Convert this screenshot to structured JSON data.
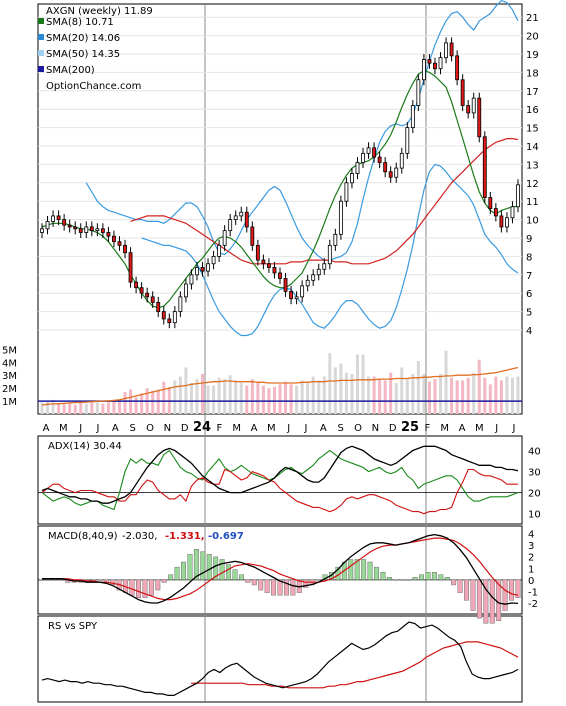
{
  "chart_data": {
    "type": "candlestick",
    "ticker": "AXGN",
    "price_panel": {
      "title": "AXGN (weekly) 11.89",
      "watermark": "OptionChance.com",
      "legend": [
        {
          "label": "SMA(8) 10.71",
          "color": "#1a7a1a"
        },
        {
          "label": "SMA(20) 14.06",
          "color": "#2a8ad4"
        },
        {
          "label": "SMA(50) 14.35",
          "color": "#9fd0f0"
        },
        {
          "label": "SMA(200)",
          "color": "#1a1aa0"
        }
      ],
      "y_ticks": [
        "4",
        "5",
        "6",
        "7",
        "8",
        "9",
        "10",
        "11",
        "12",
        "13",
        "14",
        "15",
        "16",
        "17",
        "18",
        "19",
        "20",
        "21"
      ],
      "ylim": [
        4,
        21.5
      ],
      "close_series": [
        9.5,
        9.9,
        10.2,
        10.0,
        9.7,
        9.6,
        9.5,
        9.3,
        9.6,
        9.4,
        9.5,
        9.3,
        9.1,
        8.8,
        8.6,
        8.2,
        6.6,
        6.3,
        6.0,
        5.8,
        5.5,
        5.0,
        4.6,
        4.4,
        5.0,
        5.8,
        6.5,
        7.0,
        7.4,
        7.2,
        7.6,
        8.0,
        8.6,
        9.4,
        10.0,
        10.2,
        10.4,
        9.6,
        8.6,
        7.8,
        7.6,
        7.4,
        7.1,
        6.8,
        6.1,
        5.7,
        5.8,
        6.4,
        6.7,
        7.0,
        7.3,
        7.6,
        8.6,
        9.2,
        11.0,
        12.0,
        12.5,
        13.1,
        13.6,
        13.9,
        13.4,
        13.1,
        12.6,
        12.3,
        12.8,
        13.6,
        15.0,
        16.2,
        17.6,
        18.7,
        18.5,
        18.2,
        18.8,
        19.6,
        18.9,
        17.6,
        16.2,
        15.8,
        16.6,
        14.5,
        11.2,
        10.6,
        10.2,
        9.6,
        10.1,
        10.7,
        11.89
      ],
      "sma8": [
        9.6,
        9.7,
        9.8,
        9.8,
        9.8,
        9.7,
        9.6,
        9.5,
        9.5,
        9.4,
        9.3,
        9.1,
        8.8,
        8.4,
        8.0,
        7.6,
        7.0,
        6.5,
        6.0,
        5.6,
        5.3,
        5.2,
        5.3,
        5.6,
        6.0,
        6.4,
        6.8,
        7.2,
        7.6,
        7.9,
        8.3,
        8.7,
        9.0,
        9.1,
        9.0,
        8.8,
        8.5,
        8.1,
        7.7,
        7.3,
        6.9,
        6.6,
        6.4,
        6.3,
        6.3,
        6.5,
        6.8,
        7.1,
        7.7,
        8.3,
        9.0,
        9.8,
        10.6,
        11.3,
        11.9,
        12.4,
        12.8,
        13.0,
        13.1,
        13.2,
        13.4,
        13.7,
        14.1,
        14.6,
        15.3,
        16.1,
        16.8,
        17.4,
        17.9,
        18.1,
        18.0,
        17.8,
        17.5,
        17.2,
        16.4,
        15.4,
        14.4,
        13.4,
        12.4,
        11.5,
        10.9,
        10.5,
        10.3,
        10.5,
        10.6,
        10.7,
        10.71
      ],
      "sma50": [
        9.9,
        10.0,
        10.1,
        10.2,
        10.2,
        10.2,
        10.2,
        10.1,
        10.0,
        9.9,
        9.8,
        9.6,
        9.4,
        9.2,
        9.0,
        8.8,
        8.6,
        8.4,
        8.2,
        8.0,
        7.8,
        7.7,
        7.6,
        7.6,
        7.6,
        7.6,
        7.6,
        7.6,
        7.6,
        7.7,
        7.7,
        7.7,
        7.8,
        7.8,
        7.8,
        7.8,
        7.8,
        7.7,
        7.7,
        7.7,
        7.6,
        7.6,
        7.6,
        7.6,
        7.7,
        7.8,
        7.9,
        8.1,
        8.3,
        8.6,
        8.9,
        9.2,
        9.6,
        10.0,
        10.4,
        10.8,
        11.2,
        11.6,
        12.0,
        12.3,
        12.6,
        12.9,
        13.2,
        13.5,
        13.8,
        14.0,
        14.2,
        14.3,
        14.4,
        14.4,
        14.35
      ],
      "bb_upper": [
        12.0,
        11.5,
        11.0,
        10.7,
        10.5,
        10.4,
        10.3,
        10.2,
        10.1,
        10.0,
        10.0,
        9.9,
        9.9,
        9.9,
        9.8,
        10.0,
        10.3,
        10.6,
        10.9,
        10.9,
        10.7,
        10.2,
        9.6,
        8.8,
        8.2,
        8.1,
        8.4,
        8.8,
        9.4,
        10.0,
        10.4,
        10.8,
        11.2,
        11.6,
        11.8,
        11.6,
        11.0,
        10.3,
        9.6,
        9.0,
        8.6,
        8.3,
        8.0,
        7.8,
        7.8,
        7.9,
        8.0,
        8.2,
        8.8,
        9.8,
        11.1,
        12.3,
        13.3,
        14.2,
        14.8,
        15.1,
        15.2,
        15.1,
        15.2,
        15.7,
        16.6,
        17.6,
        18.6,
        19.5,
        20.2,
        20.8,
        21.2,
        21.3,
        21.0,
        20.6,
        20.3,
        20.8,
        21.0,
        21.2,
        21.6,
        21.9,
        21.8,
        21.4,
        20.8
      ],
      "bb_lower": [
        9.0,
        8.9,
        8.8,
        8.7,
        8.6,
        8.6,
        8.5,
        8.4,
        8.3,
        8.0,
        7.6,
        7.0,
        6.3,
        5.6,
        5.0,
        4.6,
        4.2,
        3.9,
        3.7,
        3.7,
        3.8,
        4.2,
        4.8,
        5.4,
        5.9,
        6.2,
        6.3,
        6.2,
        5.8,
        5.4,
        4.9,
        4.4,
        4.2,
        4.1,
        4.4,
        4.8,
        5.3,
        5.6,
        5.6,
        5.4,
        5.0,
        4.6,
        4.3,
        4.1,
        4.2,
        4.5,
        5.2,
        6.2,
        7.3,
        8.6,
        10.2,
        11.6,
        12.6,
        13.0,
        12.9,
        12.6,
        12.2,
        11.9,
        11.6,
        11.3,
        10.8,
        10.0,
        9.2,
        8.8,
        8.5,
        8.1,
        7.6,
        7.3,
        7.1
      ]
    },
    "volume_panel": {
      "y_ticks": [
        "1M",
        "2M",
        "3M",
        "4M",
        "5M"
      ],
      "ylim": [
        0,
        6.5
      ],
      "volume_m": [
        0.9,
        1.0,
        1.1,
        0.8,
        0.8,
        0.9,
        0.7,
        0.9,
        0.8,
        1.0,
        0.9,
        0.8,
        0.9,
        1.1,
        1.0,
        1.7,
        1.9,
        1.3,
        1.6,
        2.0,
        1.8,
        1.9,
        2.5,
        2.1,
        2.6,
        2.9,
        3.6,
        2.4,
        2.7,
        3.1,
        2.2,
        2.2,
        2.8,
        2.7,
        3.0,
        2.6,
        2.4,
        2.2,
        2.7,
        2.5,
        2.2,
        2.0,
        2.1,
        2.3,
        2.5,
        2.3,
        2.2,
        2.6,
        2.5,
        2.9,
        2.6,
        2.9,
        4.7,
        3.6,
        3.9,
        3.2,
        3.1,
        4.6,
        4.6,
        2.9,
        2.9,
        2.7,
        2.6,
        3.2,
        2.4,
        3.6,
        2.7,
        3.1,
        4.1,
        3.1,
        2.5,
        2.7,
        3.1,
        4.9,
        2.8,
        2.6,
        2.6,
        2.8,
        3.2,
        4.2,
        2.8,
        2.3,
        2.9,
        2.6,
        2.9,
        2.8,
        2.9
      ],
      "avg_series": [
        0.7,
        0.75,
        0.78,
        0.8,
        0.82,
        0.85,
        0.88,
        0.9,
        0.92,
        0.95,
        0.98,
        1.0,
        1.02,
        1.05,
        1.1,
        1.2,
        1.3,
        1.4,
        1.5,
        1.6,
        1.7,
        1.8,
        1.9,
        2.0,
        2.1,
        2.15,
        2.2,
        2.3,
        2.35,
        2.4,
        2.45,
        2.5,
        2.5,
        2.55,
        2.55,
        2.5,
        2.5,
        2.5,
        2.5,
        2.45,
        2.45,
        2.4,
        2.4,
        2.4,
        2.4,
        2.4,
        2.4,
        2.45,
        2.45,
        2.5,
        2.5,
        2.5,
        2.55,
        2.55,
        2.6,
        2.6,
        2.6,
        2.65,
        2.65,
        2.65,
        2.65,
        2.7,
        2.7,
        2.7,
        2.75,
        2.75,
        2.75,
        2.8,
        2.8,
        2.85,
        2.85,
        2.9,
        2.9,
        2.95,
        2.95,
        3.0,
        3.0,
        3.0,
        3.05,
        3.05,
        3.1,
        3.15,
        3.2,
        3.3,
        3.4,
        3.5,
        3.6
      ]
    },
    "x_axis": {
      "labels": [
        "A",
        "M",
        "J",
        "J",
        "A",
        "S",
        "O",
        "N",
        "D",
        "24",
        "F",
        "M",
        "A",
        "M",
        "J",
        "J",
        "A",
        "S",
        "O",
        "N",
        "D",
        "25",
        "F",
        "M",
        "A",
        "M",
        "J",
        "J"
      ]
    },
    "adx_panel": {
      "label": "ADX(14) 30.44",
      "y_ticks": [
        "10",
        "20",
        "30",
        "40"
      ],
      "ylim": [
        7,
        45
      ],
      "adx": [
        21,
        22,
        21,
        20,
        19,
        18,
        18,
        17,
        17,
        16,
        16,
        15,
        15,
        16,
        17,
        18,
        20,
        24,
        28,
        32,
        35,
        38,
        40,
        41,
        40,
        38,
        36,
        34,
        31,
        28,
        26,
        24,
        22,
        21,
        20,
        20,
        20,
        21,
        22,
        23,
        24,
        25,
        27,
        30,
        32,
        31,
        30,
        28,
        26,
        25,
        25,
        27,
        31,
        35,
        39,
        41,
        42,
        41,
        40,
        38,
        36,
        35,
        34,
        33,
        34,
        36,
        38,
        40,
        41,
        42,
        42,
        42,
        41,
        40,
        38,
        37,
        36,
        35,
        34,
        33,
        33,
        33,
        32,
        32,
        31,
        31,
        30.44
      ],
      "plus_di": [
        20,
        18,
        16,
        17,
        18,
        17,
        15,
        14,
        15,
        16,
        16,
        14,
        13,
        12,
        20,
        30,
        36,
        34,
        36,
        34,
        34,
        33,
        38,
        40,
        36,
        32,
        30,
        29,
        27,
        26,
        30,
        33,
        36,
        32,
        30,
        31,
        33,
        31,
        29,
        28,
        27,
        26,
        27,
        29,
        31,
        32,
        30,
        29,
        31,
        33,
        36,
        38,
        40,
        38,
        36,
        35,
        34,
        33,
        32,
        30,
        31,
        32,
        30,
        29,
        30,
        32,
        28,
        26,
        22,
        24,
        25,
        26,
        27,
        28,
        28,
        26,
        22,
        18,
        16,
        16,
        17,
        18,
        18,
        18,
        18,
        19,
        20
      ],
      "minus_di": [
        20,
        22,
        24,
        24,
        22,
        21,
        20,
        21,
        21,
        21,
        20,
        19,
        18,
        18,
        16,
        16,
        19,
        19,
        23,
        26,
        25,
        21,
        19,
        17,
        17,
        19,
        16,
        23,
        26,
        27,
        25,
        24,
        24,
        31,
        30,
        28,
        26,
        27,
        30,
        29,
        28,
        26,
        25,
        22,
        20,
        18,
        16,
        15,
        14,
        13,
        13,
        12,
        11,
        12,
        14,
        17,
        18,
        17,
        18,
        19,
        19,
        18,
        17,
        16,
        14,
        13,
        12,
        11,
        11,
        10,
        11,
        11,
        12,
        12,
        13,
        20,
        25,
        31,
        31,
        29,
        28,
        28,
        27,
        26,
        24,
        24,
        24
      ]
    },
    "macd_panel": {
      "label_name": "MACD(8,40,9)",
      "label_value": "-2.030,",
      "signal_value": "-1.331,",
      "histogram_value": "-0.697",
      "y_ticks": [
        "-2",
        "-1",
        "0",
        "1",
        "2",
        "3",
        "4"
      ],
      "ylim": [
        -2.6,
        4.3
      ],
      "macd": [
        0.1,
        0.1,
        0.1,
        0.1,
        0.0,
        -0.1,
        -0.1,
        -0.2,
        -0.2,
        -0.2,
        -0.3,
        -0.5,
        -0.8,
        -1.1,
        -1.4,
        -1.7,
        -1.9,
        -2.0,
        -2.0,
        -1.8,
        -1.5,
        -1.1,
        -0.7,
        -0.2,
        0.3,
        0.6,
        0.9,
        1.2,
        1.4,
        1.5,
        1.6,
        1.5,
        1.3,
        1.1,
        0.8,
        0.5,
        0.2,
        -0.1,
        -0.3,
        -0.5,
        -0.6,
        -0.5,
        -0.4,
        -0.2,
        0.1,
        0.4,
        0.9,
        1.5,
        2.0,
        2.4,
        2.8,
        3.1,
        3.2,
        3.2,
        3.1,
        3.0,
        3.1,
        3.2,
        3.4,
        3.6,
        3.8,
        3.9,
        3.8,
        3.6,
        3.2,
        2.6,
        1.9,
        1.0,
        0.1,
        -0.8,
        -1.5,
        -2.0,
        -2.1,
        -2.0,
        -2.03
      ],
      "signal": [
        0.1,
        0.1,
        0.1,
        0.1,
        0.1,
        0.0,
        0.0,
        -0.1,
        -0.1,
        -0.2,
        -0.2,
        -0.3,
        -0.4,
        -0.6,
        -0.8,
        -1.0,
        -1.2,
        -1.4,
        -1.6,
        -1.7,
        -1.7,
        -1.6,
        -1.4,
        -1.2,
        -0.9,
        -0.5,
        -0.1,
        0.3,
        0.6,
        0.9,
        1.2,
        1.3,
        1.4,
        1.3,
        1.2,
        1.0,
        0.8,
        0.5,
        0.3,
        0.1,
        -0.1,
        -0.2,
        -0.2,
        -0.2,
        -0.1,
        0.1,
        0.4,
        0.8,
        1.2,
        1.6,
        2.0,
        2.4,
        2.7,
        2.9,
        3.0,
        3.0,
        3.1,
        3.2,
        3.3,
        3.4,
        3.5,
        3.6,
        3.6,
        3.5,
        3.4,
        3.1,
        2.7,
        2.2,
        1.6,
        0.9,
        0.2,
        -0.4,
        -0.9,
        -1.2,
        -1.33
      ]
    },
    "rs_panel": {
      "label": "RS vs SPY",
      "rs": [
        1.8,
        1.9,
        1.8,
        1.7,
        1.8,
        1.7,
        1.7,
        1.6,
        1.7,
        1.6,
        1.6,
        1.5,
        1.5,
        1.4,
        1.4,
        1.3,
        1.2,
        1.1,
        1.0,
        1.0,
        0.9,
        0.9,
        0.8,
        0.8,
        1.0,
        1.2,
        1.4,
        1.6,
        1.9,
        2.3,
        2.5,
        2.3,
        2.6,
        2.8,
        2.9,
        2.6,
        2.3,
        2.0,
        1.8,
        1.6,
        1.5,
        1.4,
        1.3,
        1.4,
        1.5,
        1.6,
        1.7,
        1.9,
        2.2,
        2.6,
        3.0,
        3.3,
        3.6,
        3.9,
        4.2,
        4.0,
        3.8,
        3.9,
        4.1,
        4.4,
        4.7,
        4.9,
        5.0,
        5.3,
        5.6,
        5.5,
        5.2,
        5.3,
        5.4,
        5.2,
        4.9,
        4.6,
        4.4,
        4.0,
        3.0,
        2.2,
        2.0,
        1.9,
        1.9,
        2.0,
        2.1,
        2.2,
        2.3,
        2.5
      ],
      "rs_sma": [
        1.6,
        1.6,
        1.6,
        1.6,
        1.6,
        1.6,
        1.6,
        1.6,
        1.6,
        1.6,
        1.5,
        1.5,
        1.5,
        1.5,
        1.4,
        1.4,
        1.4,
        1.3,
        1.3,
        1.3,
        1.3,
        1.3,
        1.3,
        1.3,
        1.4,
        1.4,
        1.5,
        1.5,
        1.6,
        1.7,
        1.7,
        1.8,
        1.9,
        2.0,
        2.1,
        2.2,
        2.3,
        2.4,
        2.6,
        2.8,
        3.0,
        3.3,
        3.5,
        3.7,
        3.9,
        4.0,
        4.1,
        4.2,
        4.3,
        4.3,
        4.3,
        4.2,
        4.1,
        4.0,
        3.9,
        3.7,
        3.5,
        3.3
      ]
    }
  }
}
